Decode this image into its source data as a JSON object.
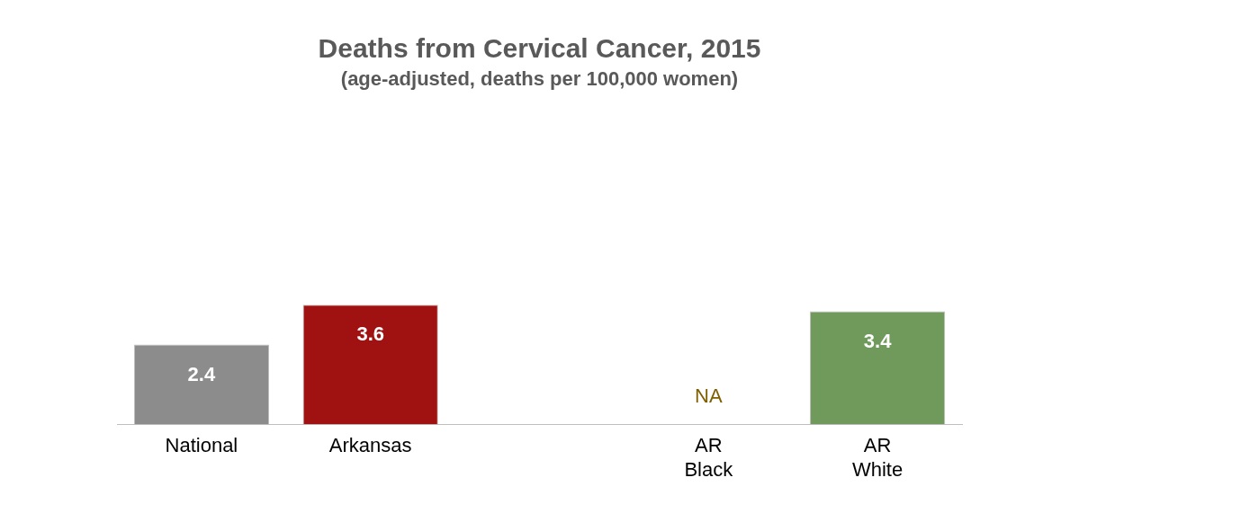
{
  "chart_data": {
    "type": "bar",
    "title": "Deaths from Cervical Cancer, 2015",
    "subtitle": "(age-adjusted, deaths per 100,000 women)",
    "categories": [
      "National",
      "Arkansas",
      null,
      "AR Black",
      "AR White"
    ],
    "values": [
      2.4,
      3.6,
      null,
      null,
      3.4
    ],
    "colors": [
      "#8c8c8c",
      "#a01212",
      null,
      null,
      "#6f9a5b"
    ],
    "value_labels": [
      "2.4",
      "3.6",
      null,
      "NA",
      "3.4"
    ],
    "tick_labels": "x",
    "grid": false,
    "legend": false
  }
}
